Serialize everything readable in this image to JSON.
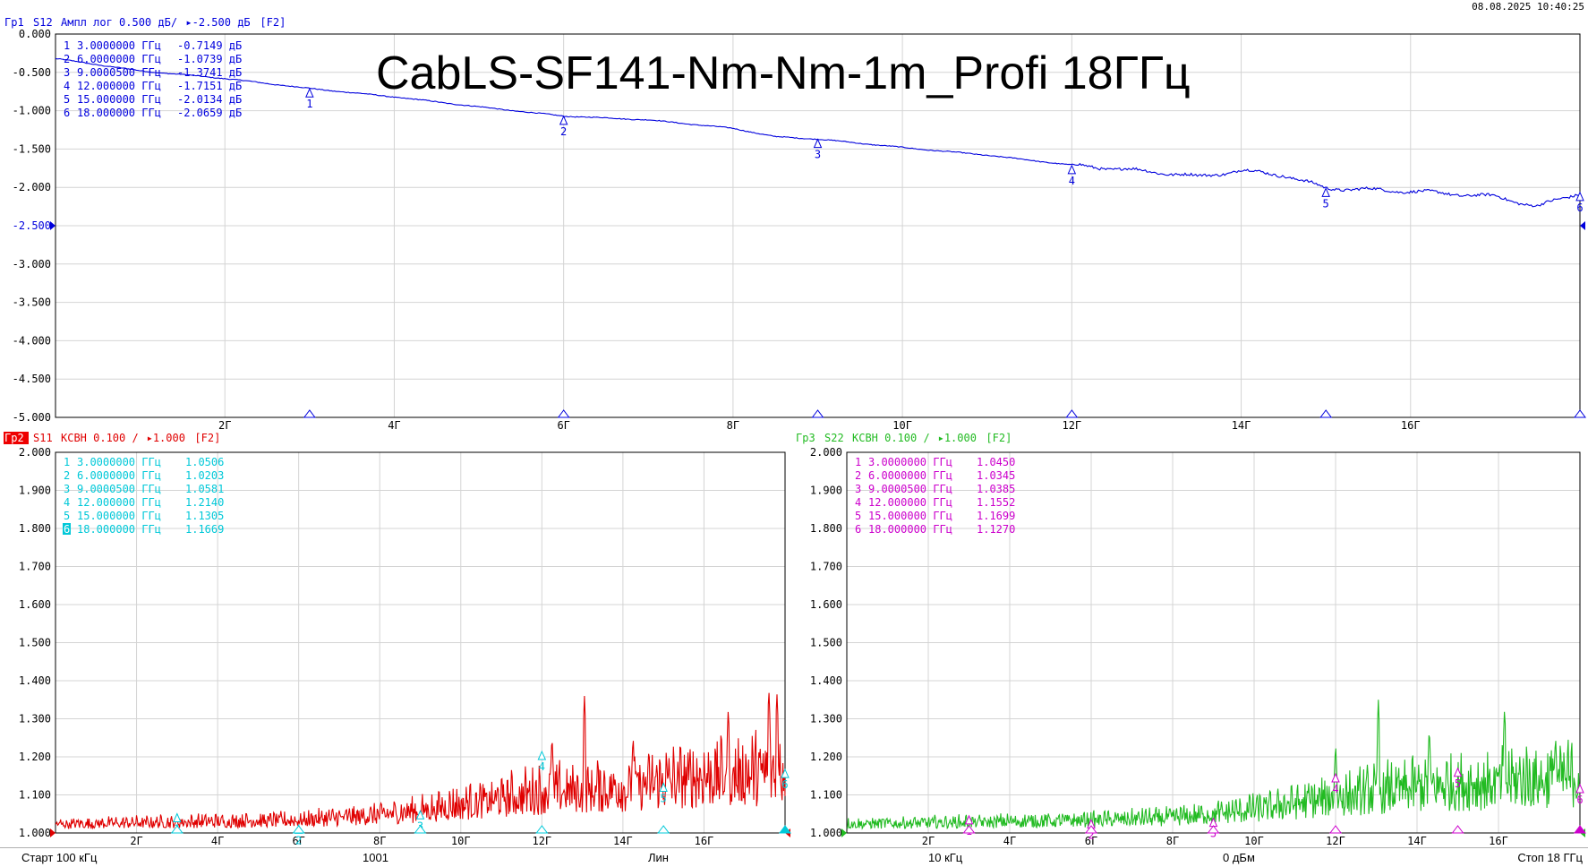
{
  "datetime": "08.08.2025 10:40:25",
  "overlay_title": "CabLS-SF141-Nm-Nm-1m_Profi 18ГГц",
  "status_bar": {
    "start": "Старт 100 кГц",
    "points": "1001",
    "sweep_type": "Лин",
    "ifbw": "10 кГц",
    "power": "0 дБм",
    "stop": "Стоп 18 ГГц"
  },
  "colors": {
    "trace1": "#0000dd",
    "trace2": "#e00000",
    "trace3": "#22bb22",
    "markers2": "#00c8d8",
    "markers3": "#cc00cc",
    "grid": "#d4d4d4",
    "active_badge": "#ee0000"
  },
  "chart_data": [
    {
      "id": "tr1",
      "type": "line",
      "title_parts": {
        "name": "Гр1",
        "param": "S12",
        "format": "Ампл лог 0.500 дБ/",
        "ref": "▸-2.500 дБ",
        "tag": "[F2]"
      },
      "x_range_ghz": [
        0,
        18
      ],
      "x_ticks": [
        {
          "x": 2,
          "label": "2Г"
        },
        {
          "x": 4,
          "label": "4Г"
        },
        {
          "x": 6,
          "label": "6Г"
        },
        {
          "x": 8,
          "label": "8Г"
        },
        {
          "x": 10,
          "label": "10Г"
        },
        {
          "x": 12,
          "label": "12Г"
        },
        {
          "x": 14,
          "label": "14Г"
        },
        {
          "x": 16,
          "label": "16Г"
        }
      ],
      "ylim": [
        -5.0,
        0.0
      ],
      "y_ticks": [
        {
          "v": 0.0,
          "label": "0.000"
        },
        {
          "v": -0.5,
          "label": "-0.500"
        },
        {
          "v": -1.0,
          "label": "-1.000"
        },
        {
          "v": -1.5,
          "label": "-1.500"
        },
        {
          "v": -2.0,
          "label": "-2.000"
        },
        {
          "v": -2.5,
          "label": "-2.500"
        },
        {
          "v": -3.0,
          "label": "-3.000"
        },
        {
          "v": -3.5,
          "label": "-3.500"
        },
        {
          "v": -4.0,
          "label": "-4.000"
        },
        {
          "v": -4.5,
          "label": "-4.500"
        },
        {
          "v": -5.0,
          "label": "-5.000"
        }
      ],
      "ref_value": -2.5,
      "series_points": [
        [
          0.0,
          -0.32
        ],
        [
          1.0,
          -0.48
        ],
        [
          2.0,
          -0.58
        ],
        [
          3.0,
          -0.71
        ],
        [
          4.0,
          -0.82
        ],
        [
          5.0,
          -0.95
        ],
        [
          6.0,
          -1.07
        ],
        [
          7.0,
          -1.12
        ],
        [
          8.0,
          -1.23
        ],
        [
          8.5,
          -1.34
        ],
        [
          9.0,
          -1.37
        ],
        [
          10.0,
          -1.48
        ],
        [
          11.0,
          -1.58
        ],
        [
          12.0,
          -1.71
        ],
        [
          13.0,
          -1.8
        ],
        [
          13.5,
          -1.86
        ],
        [
          14.0,
          -1.78
        ],
        [
          14.5,
          -1.84
        ],
        [
          15.0,
          -2.01
        ],
        [
          16.0,
          -2.05
        ],
        [
          17.0,
          -2.12
        ],
        [
          17.5,
          -2.25
        ],
        [
          18.0,
          -2.07
        ]
      ],
      "markers": [
        {
          "n": "1",
          "freq": "3.0000000 ГГц",
          "value": "-0.7149 дБ",
          "x": 3.0,
          "y": -0.7149
        },
        {
          "n": "2",
          "freq": "6.0000000 ГГц",
          "value": "-1.0739 дБ",
          "x": 6.0,
          "y": -1.0739
        },
        {
          "n": "3",
          "freq": "9.0000500 ГГц",
          "value": "-1.3741 дБ",
          "x": 9.00005,
          "y": -1.3741
        },
        {
          "n": "4",
          "freq": "12.000000 ГГц",
          "value": "-1.7151 дБ",
          "x": 12.0,
          "y": -1.7151
        },
        {
          "n": "5",
          "freq": "15.000000 ГГц",
          "value": "-2.0134 дБ",
          "x": 15.0,
          "y": -2.0134
        },
        {
          "n": "6",
          "freq": "18.000000 ГГц",
          "value": "-2.0659 дБ",
          "x": 18.0,
          "y": -2.0659
        }
      ]
    },
    {
      "id": "tr2",
      "type": "line",
      "title_parts": {
        "name": "Гр2",
        "param": "S11",
        "format": "КСВН 0.100 /",
        "ref": "▸1.000",
        "tag": "[F2]"
      },
      "x_range_ghz": [
        0,
        18
      ],
      "x_ticks": [
        {
          "x": 2,
          "label": "2Г"
        },
        {
          "x": 4,
          "label": "4Г"
        },
        {
          "x": 6,
          "label": "6Г"
        },
        {
          "x": 8,
          "label": "8Г"
        },
        {
          "x": 10,
          "label": "10Г"
        },
        {
          "x": 12,
          "label": "12Г"
        },
        {
          "x": 14,
          "label": "14Г"
        },
        {
          "x": 16,
          "label": "16Г"
        }
      ],
      "ylim": [
        1.0,
        2.0
      ],
      "y_ticks": [
        {
          "v": 2.0,
          "label": "2.000"
        },
        {
          "v": 1.9,
          "label": "1.900"
        },
        {
          "v": 1.8,
          "label": "1.800"
        },
        {
          "v": 1.7,
          "label": "1.700"
        },
        {
          "v": 1.6,
          "label": "1.600"
        },
        {
          "v": 1.5,
          "label": "1.500"
        },
        {
          "v": 1.4,
          "label": "1.400"
        },
        {
          "v": 1.3,
          "label": "1.300"
        },
        {
          "v": 1.2,
          "label": "1.200"
        },
        {
          "v": 1.1,
          "label": "1.100"
        },
        {
          "v": 1.0,
          "label": "1.000"
        }
      ],
      "ref_value": 1.0,
      "envelope": [
        [
          0,
          1.035
        ],
        [
          2,
          1.04
        ],
        [
          4,
          1.045
        ],
        [
          6,
          1.05
        ],
        [
          8,
          1.07
        ],
        [
          10,
          1.11
        ],
        [
          12,
          1.16
        ],
        [
          14,
          1.18
        ],
        [
          16,
          1.22
        ],
        [
          18,
          1.24
        ]
      ],
      "peaks": [
        [
          13.05,
          1.36
        ],
        [
          17.6,
          1.38
        ],
        [
          17.8,
          1.37
        ],
        [
          16.6,
          1.33
        ],
        [
          12.25,
          1.26
        ],
        [
          14.25,
          1.26
        ]
      ],
      "markers": [
        {
          "n": "1",
          "freq": "3.0000000 ГГц",
          "value": "1.0506",
          "x": 3.0,
          "y": 1.0506
        },
        {
          "n": "2",
          "freq": "6.0000000 ГГц",
          "value": "1.0203",
          "x": 6.0,
          "y": 1.0203
        },
        {
          "n": "3",
          "freq": "9.0000500 ГГц",
          "value": "1.0581",
          "x": 9.00005,
          "y": 1.0581
        },
        {
          "n": "4",
          "freq": "12.000000 ГГц",
          "value": "1.2140",
          "x": 12.0,
          "y": 1.214
        },
        {
          "n": "5",
          "freq": "15.000000 ГГц",
          "value": "1.1305",
          "x": 15.0,
          "y": 1.1305
        },
        {
          "n": "6",
          "freq": "18.000000 ГГц",
          "value": "1.1669",
          "x": 18.0,
          "y": 1.1669
        }
      ]
    },
    {
      "id": "tr3",
      "type": "line",
      "title_parts": {
        "name": "Гр3",
        "param": "S22",
        "format": "КСВН 0.100 /",
        "ref": "▸1.000",
        "tag": "[F2]"
      },
      "x_range_ghz": [
        0,
        18
      ],
      "x_ticks": [
        {
          "x": 2,
          "label": "2Г"
        },
        {
          "x": 4,
          "label": "4Г"
        },
        {
          "x": 6,
          "label": "6Г"
        },
        {
          "x": 8,
          "label": "8Г"
        },
        {
          "x": 10,
          "label": "10Г"
        },
        {
          "x": 12,
          "label": "12Г"
        },
        {
          "x": 14,
          "label": "14Г"
        },
        {
          "x": 16,
          "label": "16Г"
        }
      ],
      "ylim": [
        1.0,
        2.0
      ],
      "y_ticks": [
        {
          "v": 2.0,
          "label": "2.000"
        },
        {
          "v": 1.9,
          "label": "1.900"
        },
        {
          "v": 1.8,
          "label": "1.800"
        },
        {
          "v": 1.7,
          "label": "1.700"
        },
        {
          "v": 1.6,
          "label": "1.600"
        },
        {
          "v": 1.5,
          "label": "1.500"
        },
        {
          "v": 1.4,
          "label": "1.400"
        },
        {
          "v": 1.3,
          "label": "1.300"
        },
        {
          "v": 1.2,
          "label": "1.200"
        },
        {
          "v": 1.1,
          "label": "1.100"
        },
        {
          "v": 1.0,
          "label": "1.000"
        }
      ],
      "ref_value": 1.0,
      "envelope": [
        [
          0,
          1.035
        ],
        [
          2,
          1.04
        ],
        [
          4,
          1.045
        ],
        [
          6,
          1.05
        ],
        [
          8,
          1.06
        ],
        [
          10,
          1.09
        ],
        [
          12,
          1.14
        ],
        [
          14,
          1.18
        ],
        [
          16,
          1.2
        ],
        [
          18,
          1.22
        ]
      ],
      "peaks": [
        [
          13.05,
          1.35
        ],
        [
          16.15,
          1.33
        ],
        [
          14.3,
          1.28
        ],
        [
          17.4,
          1.26
        ],
        [
          12.0,
          1.24
        ]
      ],
      "markers": [
        {
          "n": "1",
          "freq": "3.0000000 ГГц",
          "value": "1.0450",
          "x": 3.0,
          "y": 1.045
        },
        {
          "n": "2",
          "freq": "6.0000000 ГГц",
          "value": "1.0345",
          "x": 6.0,
          "y": 1.0345
        },
        {
          "n": "3",
          "freq": "9.0000500 ГГц",
          "value": "1.0385",
          "x": 9.00005,
          "y": 1.0385
        },
        {
          "n": "4",
          "freq": "12.000000 ГГц",
          "value": "1.1552",
          "x": 12.0,
          "y": 1.1552
        },
        {
          "n": "5",
          "freq": "15.000000 ГГц",
          "value": "1.1699",
          "x": 15.0,
          "y": 1.1699
        },
        {
          "n": "6",
          "freq": "18.000000 ГГц",
          "value": "1.1270",
          "x": 18.0,
          "y": 1.127
        }
      ]
    }
  ]
}
